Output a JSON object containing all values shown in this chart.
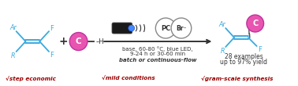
{
  "bg_color": "#ffffff",
  "arrow_color": "#333333",
  "mol_color": "#3aaadd",
  "pink_color": "#e855b0",
  "dark_pink": "#c030a0",
  "red_text": "#990000",
  "dark_text": "#333333",
  "reagent_text1": "base, 60-80 °C, blue LED,",
  "reagent_text2": "9-24 h or 30-60 min",
  "batch_text": "batch or continuous-flow",
  "examples_text1": "28 examples",
  "examples_text2": "up to 97% yield",
  "check1": "√step economic",
  "check2": "√mild conditions",
  "check3": "√gram-scale synthesis",
  "pc_text": "PC",
  "br_text": "Br⁻"
}
